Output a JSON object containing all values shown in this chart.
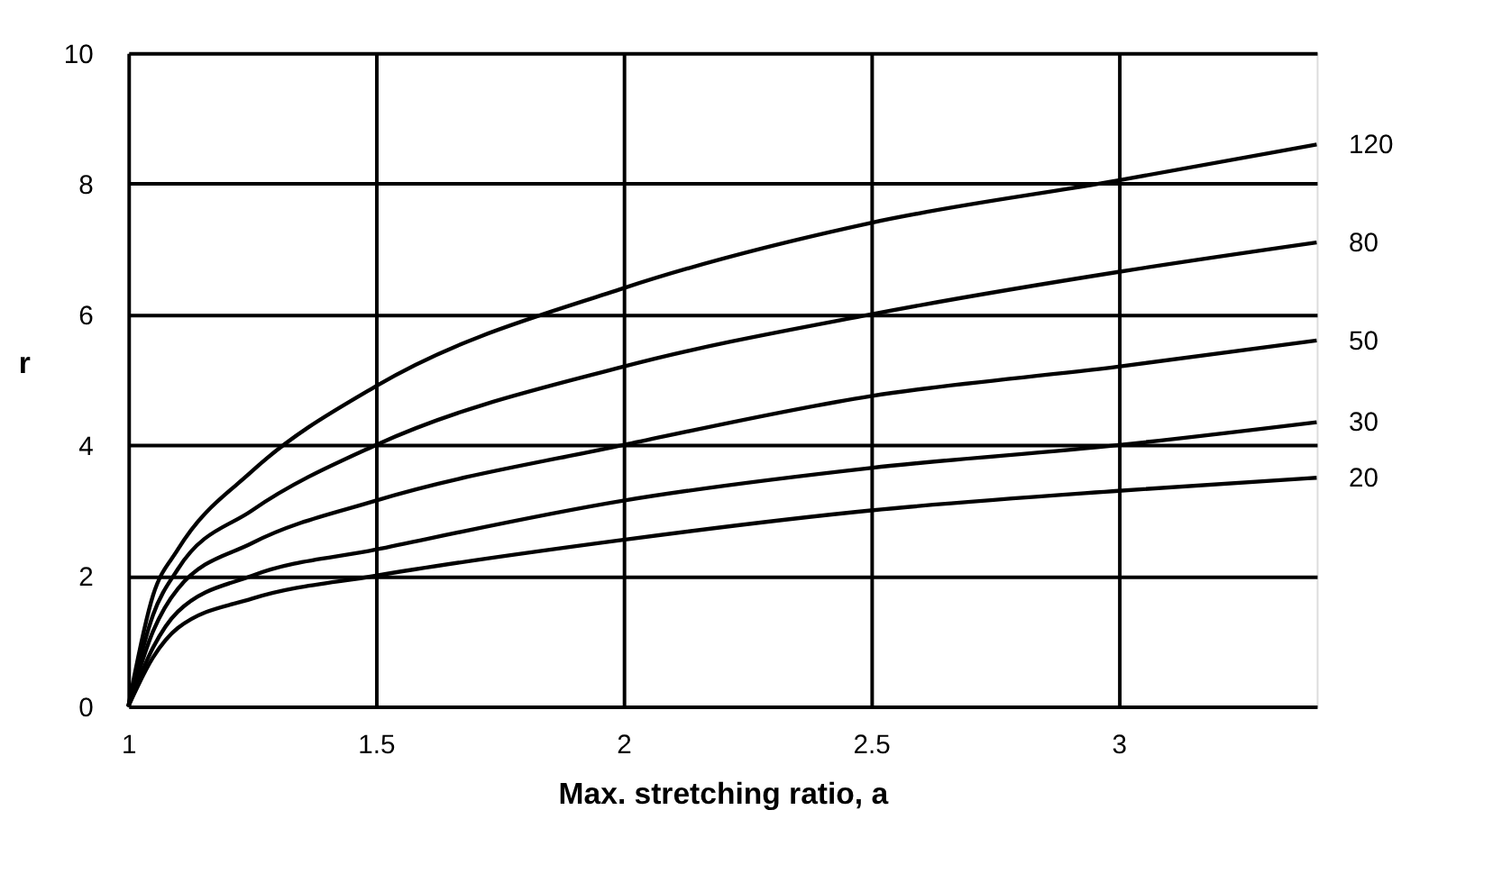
{
  "chart_data": {
    "type": "line",
    "xlabel": "Max. stretching ratio, a",
    "ylabel": "r",
    "xlim": [
      1,
      3.4
    ],
    "xticks": [
      1,
      1.5,
      2,
      2.5,
      3
    ],
    "ylim": [
      0,
      10
    ],
    "yticks": [
      0,
      2,
      4,
      6,
      8,
      10
    ],
    "grid": true,
    "legend": false,
    "marker": "none",
    "line_style": "solid",
    "x": [
      1,
      1.05,
      1.1,
      1.25,
      1.5,
      2,
      2.5,
      3,
      3.4
    ],
    "series": [
      {
        "name": "120",
        "color": "#000000",
        "values": [
          0,
          1.7,
          2.4,
          3.6,
          4.9,
          6.4,
          7.4,
          8.05,
          8.6
        ]
      },
      {
        "name": "80",
        "color": "#000000",
        "values": [
          0,
          1.4,
          2.1,
          3.0,
          4.0,
          5.2,
          6.0,
          6.65,
          7.1
        ]
      },
      {
        "name": "50",
        "color": "#000000",
        "values": [
          0,
          1.15,
          1.8,
          2.5,
          3.15,
          4.0,
          4.75,
          5.2,
          5.6
        ]
      },
      {
        "name": "30",
        "color": "#000000",
        "values": [
          0,
          0.9,
          1.45,
          2.0,
          2.4,
          3.15,
          3.65,
          4.0,
          4.35
        ]
      },
      {
        "name": "20",
        "color": "#000000",
        "values": [
          0,
          0.75,
          1.2,
          1.65,
          2.0,
          2.55,
          3.0,
          3.3,
          3.5
        ]
      }
    ]
  }
}
